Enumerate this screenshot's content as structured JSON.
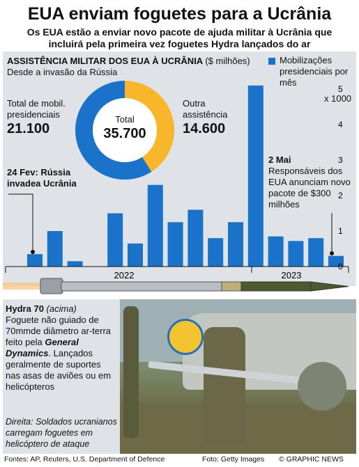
{
  "title": "EUA enviam foguetes para a Ucrânia",
  "subtitle": "Os EUA estão a enviar novo pacote de ajuda militar à Ucrânia que incluirá pela primeira vez foguetes Hydra lançados do ar",
  "panel": {
    "heading": "ASSISTÊNCIA MILITAR DOS EUA À UCRÂNIA",
    "unit": "($ milhões)",
    "since": "Desde a invasão da Rússia",
    "legend": "Mobilizações presidenciais por mês",
    "donut_total_label": "Total",
    "donut_total_value": "35.700",
    "left_label": "Total de mobil. presidenciais",
    "left_value": "21.100",
    "right_label": "Outra assistência",
    "right_value": "14.600",
    "ann_feb": "24 Fev: Rússia invadea Ucrânia",
    "ann_may_date": "2 Mai",
    "ann_may_text": "Responsáveis dos EUA anunciam novo pacote de $300 milhões",
    "y_mult": "x 1000"
  },
  "chart_data": [
    {
      "type": "pie",
      "title": "Total",
      "categories": [
        "Total de mobil. presidenciais",
        "Outra assistência"
      ],
      "values": [
        21100,
        14600
      ],
      "colors": [
        "#1a73c8",
        "#f7b62b"
      ]
    },
    {
      "type": "bar",
      "title": "Mobilizações presidenciais por mês",
      "ylabel": "$ milhões x 1000",
      "ylim": [
        0,
        5.2
      ],
      "yticks": [
        0,
        1,
        2,
        3,
        4,
        5
      ],
      "year_labels": [
        "2022",
        "2023"
      ],
      "values": [
        0.35,
        1.0,
        0.15,
        0.0,
        1.5,
        0.65,
        2.3,
        1.25,
        1.6,
        0.8,
        1.25,
        5.1,
        0.85,
        0.72,
        0.8,
        0.3
      ],
      "color": "#1a73c8"
    }
  ],
  "bottom": {
    "hydra_name": "Hydra 70",
    "hydra_note": "(acima)",
    "hydra_desc1": "Foguete não guiado de 70mmde diâmetro ar-terra feito pela",
    "maker": "General Dynamics",
    "hydra_desc2": ". Lançados geralmente de suportes nas asas de aviões ou em helicópteros",
    "caption": "Direita: Soldados ucranianos carregam foguetes em helicóptero de ataque"
  },
  "footer": {
    "sources": "Fontes: AP, Reuters, U.S. Department of Defence",
    "photo": "Foto: Getty Images",
    "credit": "© GRAPHIC NEWS"
  }
}
